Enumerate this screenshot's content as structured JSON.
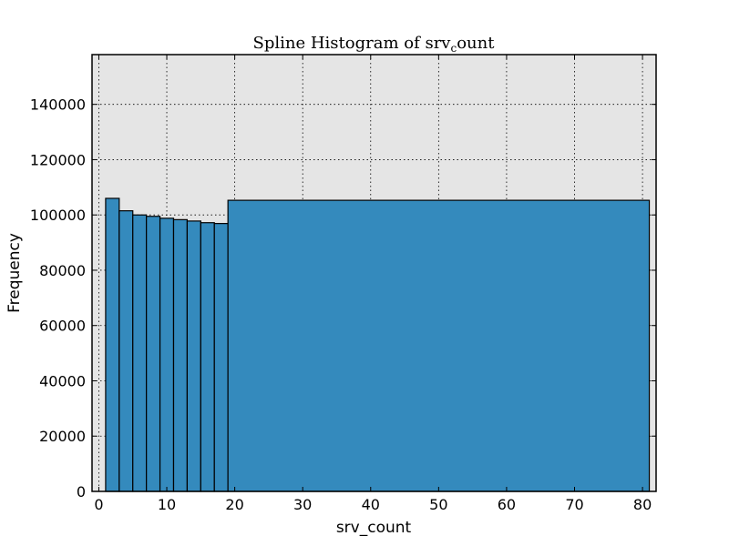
{
  "chart_data": {
    "type": "bar",
    "title": "Spline Histogram of srv",
    "title_subscript": "c",
    "title_suffix": "ount",
    "xlabel": "srv_count",
    "ylabel": "Frequency",
    "xlim": [
      -1,
      82
    ],
    "ylim": [
      0,
      158000
    ],
    "xticks": [
      0,
      10,
      20,
      30,
      40,
      50,
      60,
      70,
      80
    ],
    "yticks": [
      0,
      20000,
      40000,
      60000,
      80000,
      100000,
      120000,
      140000
    ],
    "grid": true,
    "colors": {
      "bar": "#348abd",
      "edge": "#000000",
      "background": "#e5e5e5"
    },
    "bins": [
      {
        "x0": 1,
        "x1": 3,
        "value": 106000
      },
      {
        "x0": 3,
        "x1": 5,
        "value": 101500
      },
      {
        "x0": 5,
        "x1": 7,
        "value": 100000
      },
      {
        "x0": 7,
        "x1": 9,
        "value": 99500
      },
      {
        "x0": 9,
        "x1": 11,
        "value": 98800
      },
      {
        "x0": 11,
        "x1": 13,
        "value": 98300
      },
      {
        "x0": 13,
        "x1": 15,
        "value": 97800
      },
      {
        "x0": 15,
        "x1": 17,
        "value": 97200
      },
      {
        "x0": 17,
        "x1": 19,
        "value": 96900
      },
      {
        "x0": 19,
        "x1": 81,
        "value": 105300
      }
    ]
  }
}
